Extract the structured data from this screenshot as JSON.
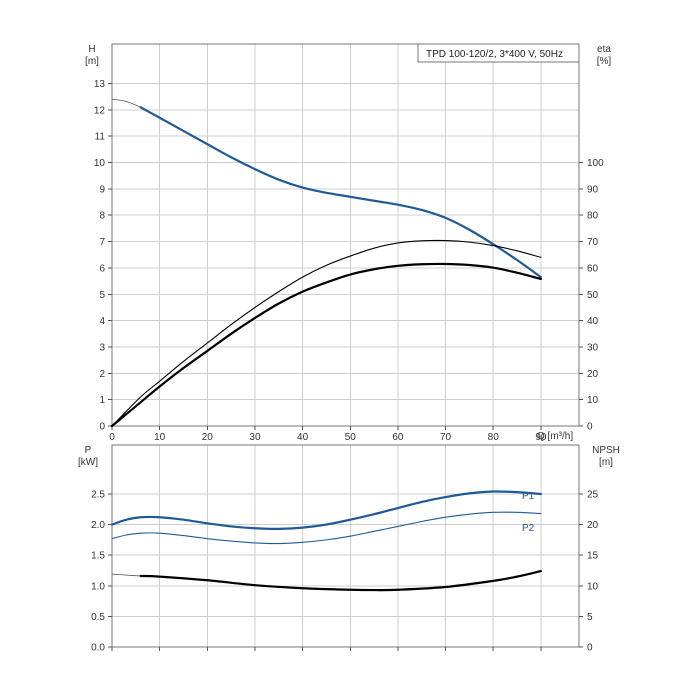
{
  "chart_data": [
    {
      "type": "line",
      "title": "TPD 100-120/2, 3*400 V, 50Hz",
      "x_axis": {
        "label": "Q [m³/h]",
        "range": [
          0,
          98
        ],
        "ticks": [
          "0",
          "10",
          "20",
          "30",
          "40",
          "50",
          "60",
          "70",
          "80",
          "90"
        ]
      },
      "y_left": {
        "label_line1": "H",
        "label_line2": "[m]",
        "range": [
          0,
          14.5
        ],
        "ticks": [
          "0",
          "1",
          "2",
          "3",
          "4",
          "5",
          "6",
          "7",
          "8",
          "9",
          "10",
          "11",
          "12",
          "13"
        ]
      },
      "y_right": {
        "label_line1": "eta",
        "label_line2": "[%]",
        "range": [
          0,
          145
        ],
        "ticks": [
          "0",
          "10",
          "20",
          "30",
          "40",
          "50",
          "60",
          "70",
          "80",
          "90",
          "100"
        ]
      },
      "grid": true,
      "colors": {
        "head": "#1f5a96",
        "eta": "#000000"
      },
      "series": [
        {
          "key": "head_ext",
          "axis": "left",
          "x": [
            0,
            3,
            6
          ],
          "y": [
            12.4,
            12.32,
            12.1
          ]
        },
        {
          "key": "head",
          "axis": "left",
          "x": [
            6,
            10,
            15,
            20,
            25,
            30,
            35,
            40,
            45,
            50,
            55,
            60,
            65,
            70,
            75,
            80,
            85,
            90
          ],
          "y": [
            12.1,
            11.7,
            11.2,
            10.7,
            10.2,
            9.75,
            9.35,
            9.05,
            8.85,
            8.7,
            8.55,
            8.4,
            8.2,
            7.9,
            7.45,
            6.9,
            6.3,
            5.65
          ]
        },
        {
          "key": "eta1",
          "axis": "right",
          "x": [
            0,
            6,
            10,
            15,
            20,
            25,
            30,
            35,
            40,
            45,
            50,
            55,
            60,
            65,
            70,
            75,
            80,
            85,
            90
          ],
          "y": [
            0,
            11,
            17,
            24.5,
            31.5,
            38.5,
            45,
            51,
            56.5,
            61,
            64.5,
            67.5,
            69.5,
            70.3,
            70.4,
            69.8,
            68.5,
            66.5,
            64
          ]
        },
        {
          "key": "eta2",
          "axis": "right",
          "x": [
            0,
            6,
            10,
            15,
            20,
            25,
            30,
            35,
            40,
            45,
            50,
            55,
            60,
            65,
            70,
            75,
            80,
            85,
            90
          ],
          "y": [
            0,
            9,
            15,
            22,
            28.5,
            35,
            41,
            46.5,
            51,
            54.5,
            57.5,
            59.5,
            60.8,
            61.4,
            61.5,
            61.1,
            60.1,
            58.2,
            55.8
          ]
        }
      ]
    },
    {
      "type": "line",
      "x_axis": {
        "range": [
          0,
          98
        ]
      },
      "y_left": {
        "label_line1": "P",
        "label_line2": "[kW]",
        "range": [
          0,
          3.3
        ],
        "ticks": [
          "0.0",
          "0.5",
          "1.0",
          "1.5",
          "2.0",
          "2.5"
        ]
      },
      "y_right": {
        "label_line1": "NPSH",
        "label_line2": "[m]",
        "range": [
          0,
          33
        ],
        "ticks": [
          "0",
          "5",
          "10",
          "15",
          "20",
          "25"
        ]
      },
      "grid": true,
      "colors": {
        "power": "#1f5a96",
        "npsh": "#000000"
      },
      "series": [
        {
          "name": "P1",
          "axis": "left",
          "x": [
            0,
            3,
            6,
            10,
            15,
            20,
            25,
            30,
            35,
            40,
            45,
            50,
            55,
            60,
            65,
            70,
            75,
            80,
            85,
            90
          ],
          "y": [
            2.0,
            2.08,
            2.12,
            2.12,
            2.08,
            2.02,
            1.97,
            1.94,
            1.93,
            1.95,
            2.0,
            2.08,
            2.17,
            2.27,
            2.37,
            2.45,
            2.51,
            2.54,
            2.53,
            2.5
          ]
        },
        {
          "name": "P2",
          "axis": "left",
          "x": [
            0,
            3,
            6,
            10,
            15,
            20,
            25,
            30,
            35,
            40,
            45,
            50,
            55,
            60,
            65,
            70,
            75,
            80,
            85,
            90
          ],
          "y": [
            1.77,
            1.83,
            1.86,
            1.86,
            1.82,
            1.77,
            1.73,
            1.7,
            1.69,
            1.71,
            1.75,
            1.81,
            1.89,
            1.97,
            2.05,
            2.12,
            2.17,
            2.2,
            2.2,
            2.18
          ]
        },
        {
          "key": "npsh_ext",
          "axis": "right",
          "x": [
            0,
            3,
            6
          ],
          "y": [
            11.9,
            11.75,
            11.6
          ]
        },
        {
          "key": "npsh",
          "axis": "right",
          "x": [
            6,
            10,
            20,
            30,
            40,
            50,
            55,
            60,
            70,
            80,
            85,
            90
          ],
          "y": [
            11.6,
            11.5,
            10.9,
            10.1,
            9.6,
            9.35,
            9.3,
            9.35,
            9.8,
            10.8,
            11.5,
            12.4
          ]
        }
      ]
    }
  ]
}
